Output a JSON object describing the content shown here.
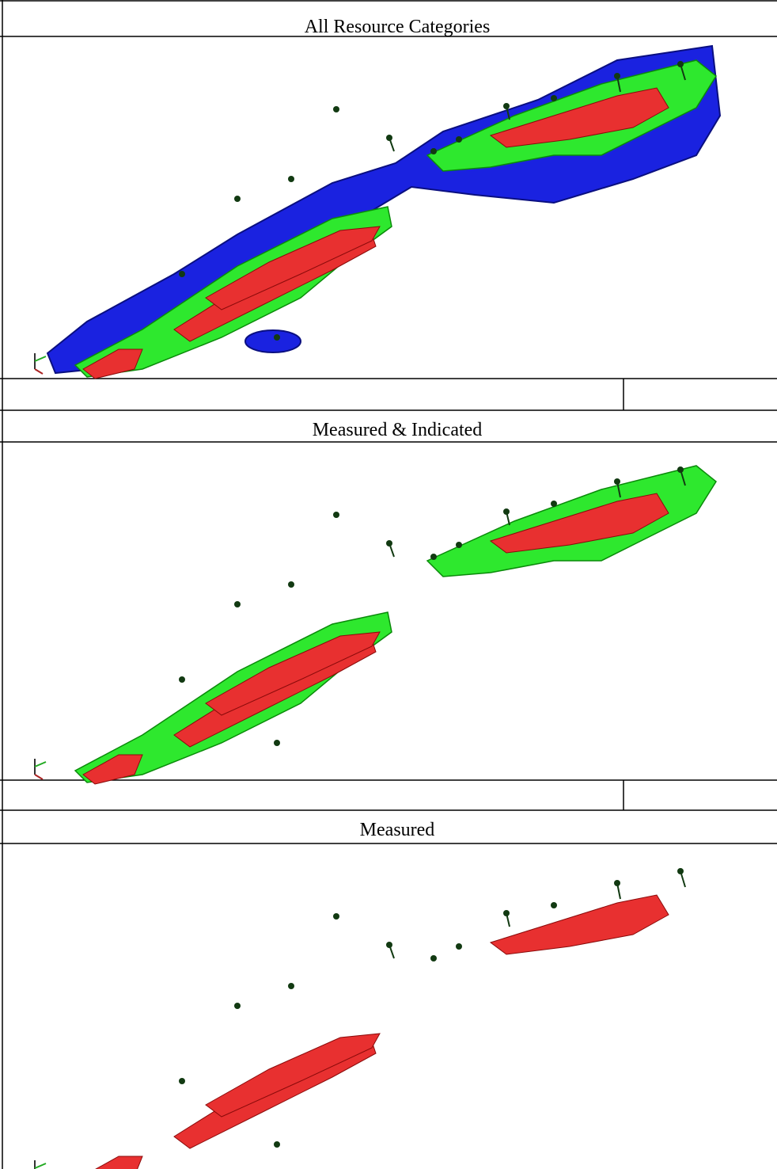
{
  "sections": [
    {
      "title": "All Resource Categories"
    },
    {
      "title": "Measured & Indicated"
    },
    {
      "title": "Measured"
    }
  ]
}
